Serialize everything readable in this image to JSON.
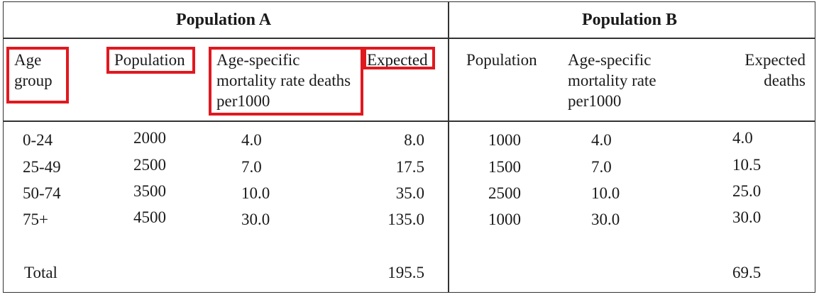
{
  "headers": {
    "population_a": "Population A",
    "population_b": "Population B"
  },
  "columns": {
    "age_group": [
      "Age",
      "group"
    ],
    "a_population": "Population",
    "a_rate": [
      "Age-specific",
      "mortality rate deaths",
      "per1000"
    ],
    "a_expected": "Expected",
    "b_population": "Population",
    "b_rate": [
      "Age-specific",
      "mortality rate",
      "per1000"
    ],
    "b_expected": [
      "Expected",
      "deaths"
    ]
  },
  "rows": [
    {
      "age": "0-24",
      "a_pop": "2000",
      "a_rate": "4.0",
      "a_exp": "8.0",
      "b_pop": "1000",
      "b_rate": "4.0",
      "b_exp": "4.0"
    },
    {
      "age": "25-49",
      "a_pop": "2500",
      "a_rate": "7.0",
      "a_exp": "17.5",
      "b_pop": "1500",
      "b_rate": "7.0",
      "b_exp": "10.5"
    },
    {
      "age": "50-74",
      "a_pop": "3500",
      "a_rate": "10.0",
      "a_exp": "35.0",
      "b_pop": "2500",
      "b_rate": "10.0",
      "b_exp": "25.0"
    },
    {
      "age": "75+",
      "a_pop": "4500",
      "a_rate": "30.0",
      "a_exp": "135.0",
      "b_pop": "1000",
      "b_rate": "30.0",
      "b_exp": "30.0"
    }
  ],
  "total": {
    "label": "Total",
    "a_exp": "195.5",
    "b_exp": "69.5"
  },
  "highlight_color": "#e0191f"
}
